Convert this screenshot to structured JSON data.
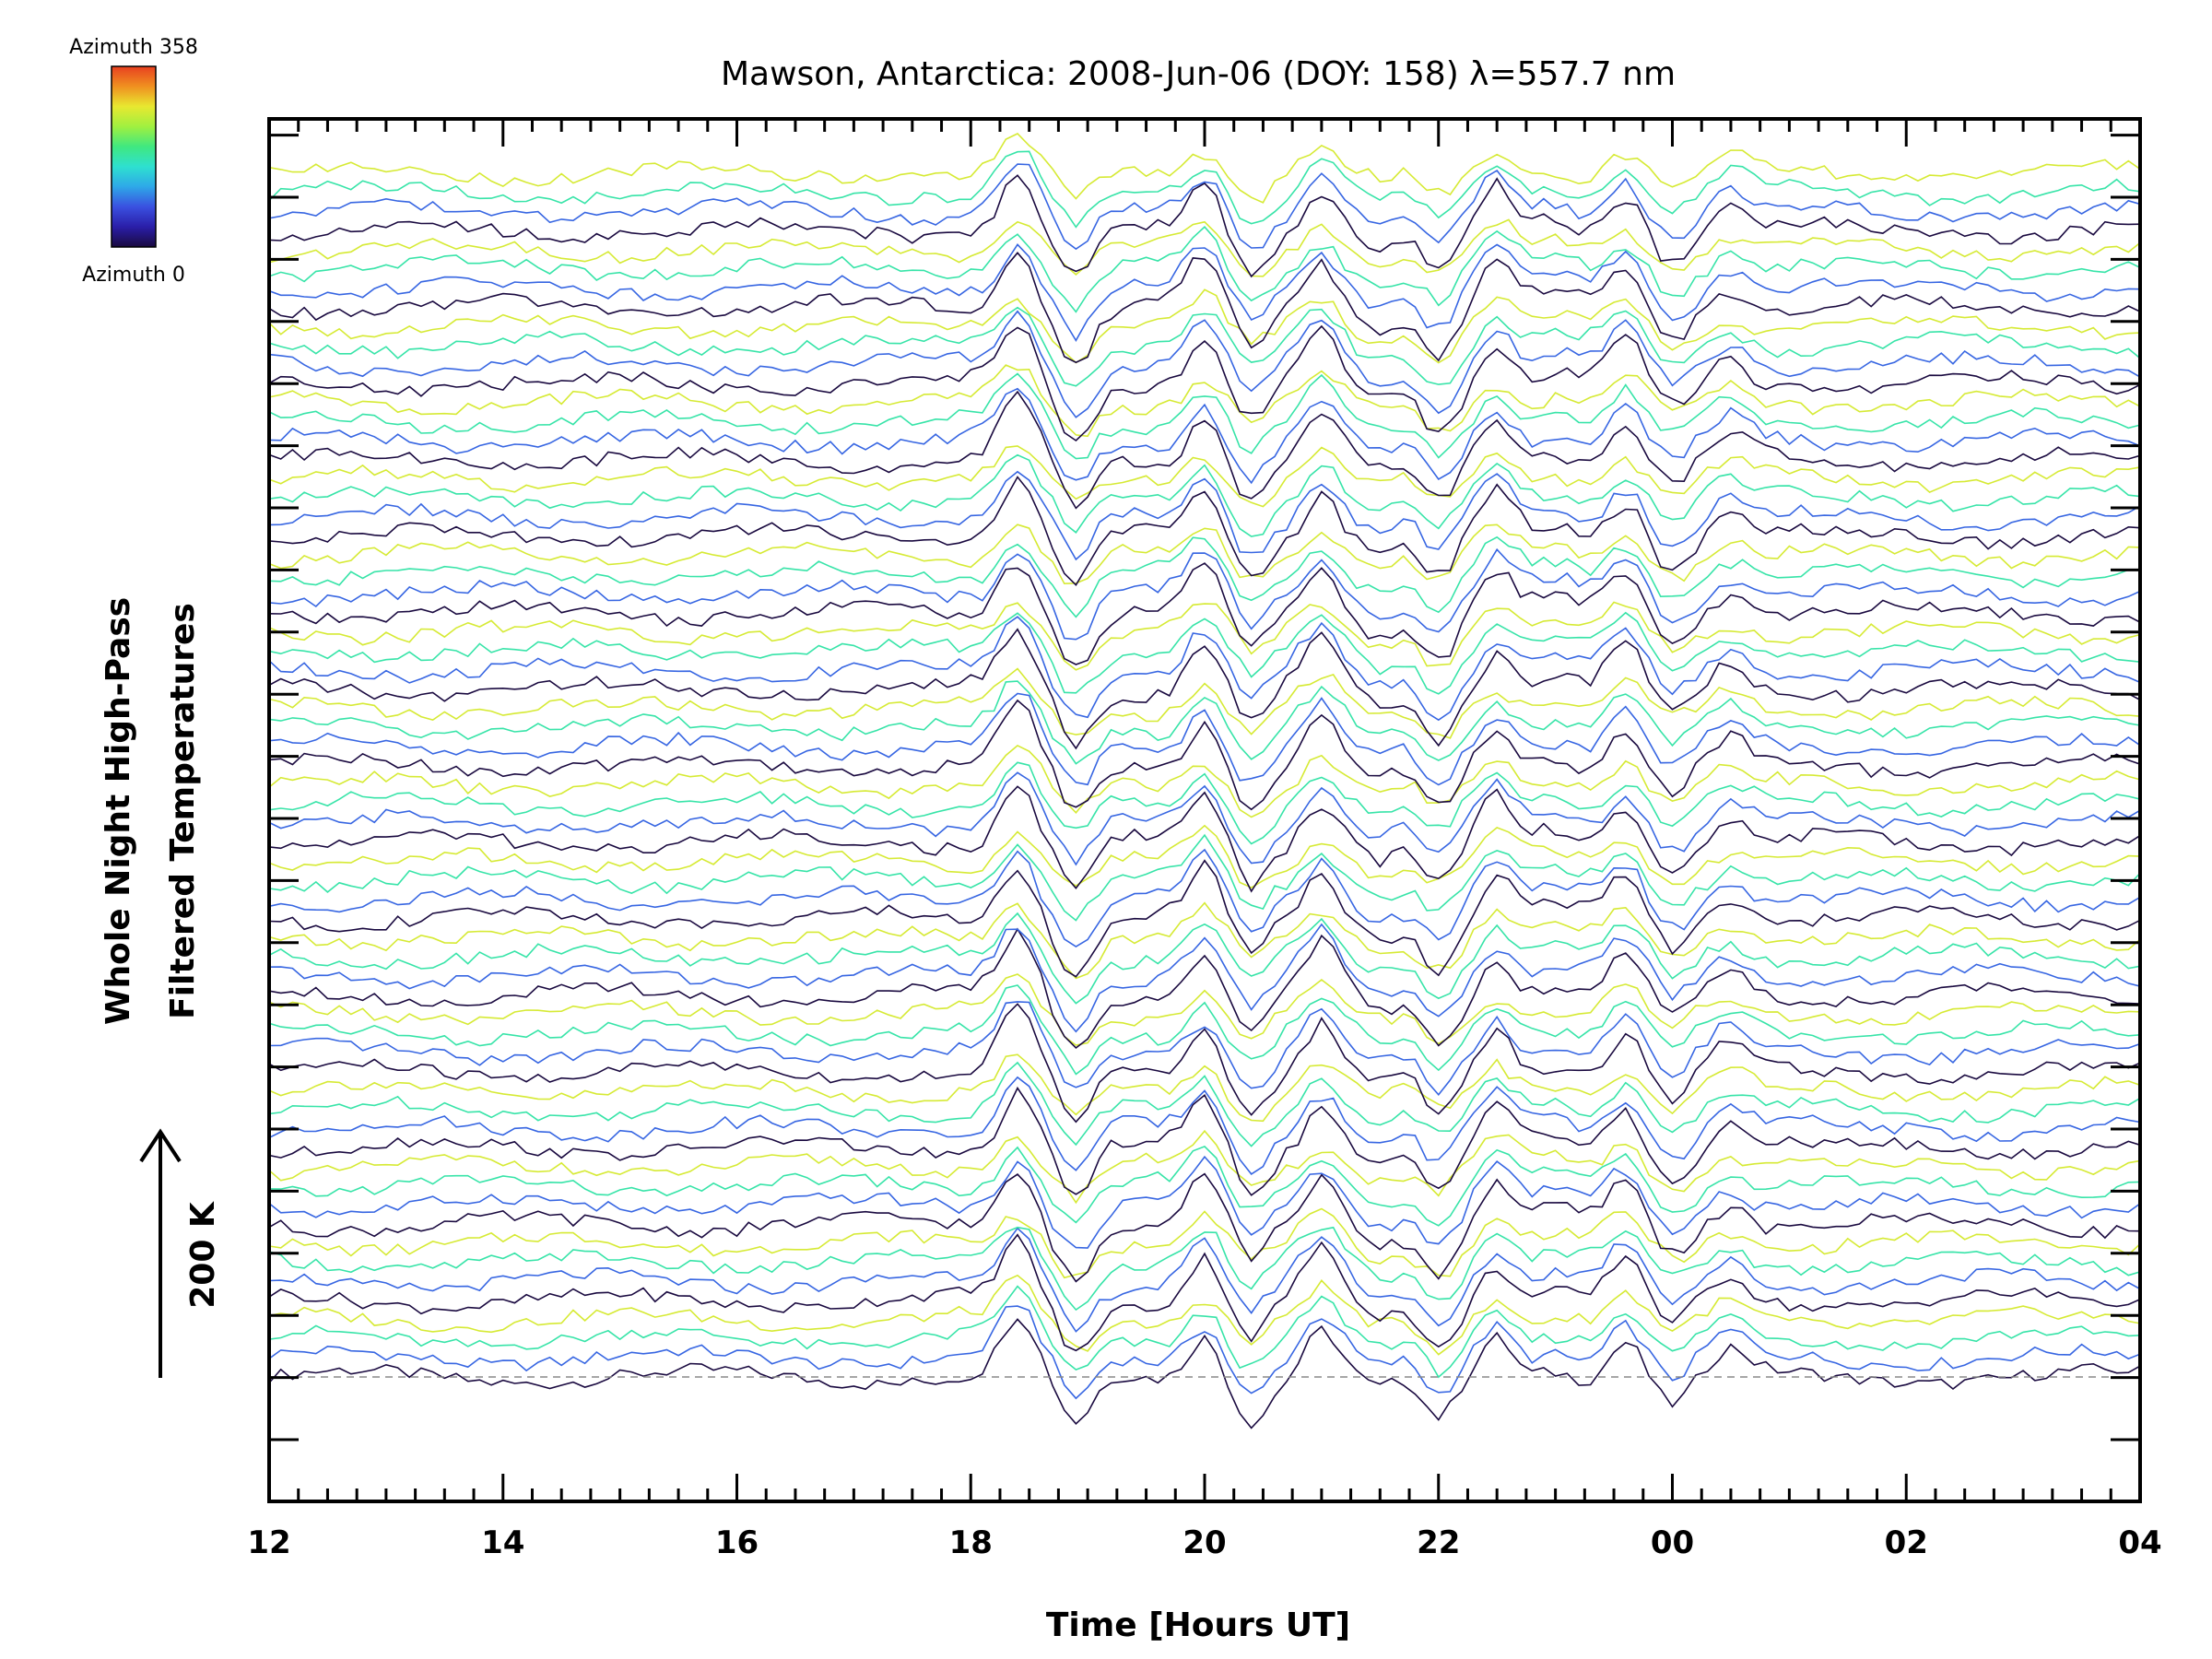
{
  "chart_data": {
    "type": "line",
    "title": "Mawson, Antarctica: 2008-Jun-06 (DOY: 158) λ=557.7 nm",
    "xlabel": "Time [Hours UT]",
    "ylabel_line1": "Whole Night High-Pass",
    "ylabel_line2": "Filtered Temperatures",
    "x_tick_labels": [
      "12",
      "14",
      "16",
      "18",
      "20",
      "22",
      "00",
      "02",
      "04"
    ],
    "x_tick_hours": [
      12,
      14,
      16,
      18,
      20,
      22,
      24,
      26,
      28
    ],
    "xlim_hours": [
      12,
      28
    ],
    "scale_bar_label": "200 K",
    "colorbar": {
      "top_label": "Azimuth 358",
      "bottom_label": "Azimuth 0",
      "min": 0,
      "max": 358,
      "colors": [
        "#1a0a40",
        "#2a1ea8",
        "#3a50e0",
        "#2ea8e8",
        "#2ee0d0",
        "#40e880",
        "#a0f040",
        "#e8e830",
        "#f09020",
        "#e84020"
      ]
    },
    "baseline_style": "dashed gray",
    "series_count": 64,
    "wave_features": [
      {
        "hour": 18.4,
        "value": 1.0
      },
      {
        "hour": 18.9,
        "value": -0.9
      },
      {
        "hour": 20.0,
        "value": 0.8
      },
      {
        "hour": 20.4,
        "value": -0.7
      },
      {
        "hour": 21.0,
        "value": 0.8
      },
      {
        "hour": 21.5,
        "value": -0.3
      },
      {
        "hour": 22.0,
        "value": -0.8
      },
      {
        "hour": 22.5,
        "value": 0.7
      },
      {
        "hour": 23.0,
        "value": 0.2
      },
      {
        "hour": 23.6,
        "value": 0.7
      },
      {
        "hour": 24.0,
        "value": -0.5
      },
      {
        "hour": 24.5,
        "value": 0.4
      }
    ]
  }
}
